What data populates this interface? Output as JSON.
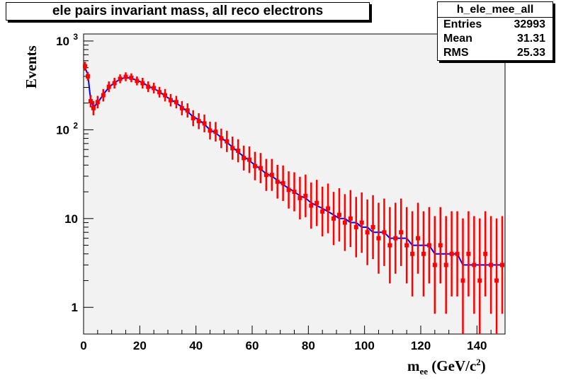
{
  "chart_data": {
    "type": "scatter",
    "title": "ele pairs invariant mass, all reco electrons",
    "xlabel": "m_ee (GeV/c^2)",
    "xlabel_main": "m",
    "xlabel_sub": "ee",
    "xlabel_unit": "(GeV/c",
    "xlabel_sup": "2",
    "xlabel_close": ")",
    "ylabel": "Events",
    "xlim": [
      0,
      150
    ],
    "ylim": [
      0.5,
      1200
    ],
    "yscale": "log",
    "x_ticks": [
      "0",
      "20",
      "40",
      "60",
      "80",
      "100",
      "120",
      "140"
    ],
    "y_ticks": [
      "1",
      "10",
      "10",
      "10"
    ],
    "y_tick_exps": [
      "",
      "",
      "2",
      "3"
    ],
    "grid": false,
    "series": [
      {
        "color": "#0000ff",
        "x": [
          0.5,
          1.5,
          2.5,
          3.5,
          5,
          7,
          9,
          11,
          13,
          15,
          17,
          19,
          21,
          23,
          25,
          27,
          29,
          31,
          33,
          35,
          37,
          39,
          41,
          43,
          45,
          47,
          49,
          51,
          53,
          55,
          57,
          59,
          61,
          63,
          65,
          67,
          69,
          71,
          73,
          75,
          77,
          79,
          81,
          83,
          85,
          87,
          89,
          91,
          93,
          95,
          97,
          99,
          101,
          103,
          105,
          107,
          109,
          111,
          113,
          115,
          117,
          119,
          121,
          123,
          125,
          127,
          129,
          131,
          133,
          135,
          137,
          139,
          141,
          143,
          145,
          147,
          149
        ],
        "y": [
          500,
          420,
          220,
          180,
          200,
          250,
          300,
          340,
          370,
          390,
          380,
          360,
          340,
          310,
          290,
          270,
          240,
          220,
          200,
          180,
          160,
          140,
          130,
          115,
          100,
          92,
          82,
          72,
          64,
          56,
          50,
          45,
          40,
          36,
          32,
          30,
          27,
          24,
          22,
          20,
          18,
          17,
          15,
          14,
          13,
          12,
          11,
          10,
          10,
          9,
          9,
          8,
          8,
          7,
          7,
          7,
          6,
          6,
          6,
          6,
          5,
          5,
          5,
          5,
          4,
          4,
          4,
          4,
          4,
          3,
          3,
          3,
          3,
          3,
          3,
          3,
          3
        ]
      },
      {
        "color": "#ff0000",
        "x": [
          0.5,
          1.5,
          2.5,
          3.5,
          5,
          7,
          9,
          11,
          13,
          15,
          17,
          19,
          21,
          23,
          25,
          27,
          29,
          31,
          33,
          35,
          37,
          39,
          41,
          43,
          45,
          47,
          49,
          51,
          53,
          55,
          57,
          59,
          61,
          63,
          65,
          67,
          69,
          71,
          73,
          75,
          77,
          79,
          81,
          83,
          85,
          87,
          89,
          91,
          93,
          95,
          97,
          99,
          101,
          103,
          105,
          107,
          109,
          111,
          113,
          115,
          117,
          119,
          121,
          123,
          125,
          127,
          129,
          131,
          133,
          135,
          137,
          139,
          141,
          143,
          145,
          147,
          149
        ],
        "y": [
          520,
          400,
          210,
          175,
          205,
          245,
          305,
          335,
          375,
          395,
          385,
          355,
          335,
          305,
          295,
          265,
          245,
          215,
          205,
          175,
          165,
          135,
          125,
          118,
          98,
          95,
          80,
          74,
          62,
          58,
          48,
          46,
          39,
          37,
          31,
          31,
          26,
          25,
          21,
          20,
          17,
          18,
          14,
          15,
          12,
          13,
          10,
          11,
          9,
          10,
          8,
          9,
          7,
          8,
          6,
          7,
          5,
          6,
          7,
          5,
          4,
          6,
          4,
          5,
          3,
          5,
          3,
          4,
          4,
          2,
          4,
          3,
          2,
          4,
          3,
          2,
          3
        ],
        "err": [
          0.05,
          0.05,
          0.07,
          0.08,
          0.07,
          0.07,
          0.06,
          0.06,
          0.05,
          0.05,
          0.05,
          0.05,
          0.06,
          0.06,
          0.06,
          0.06,
          0.07,
          0.07,
          0.07,
          0.08,
          0.08,
          0.09,
          0.09,
          0.1,
          0.1,
          0.11,
          0.11,
          0.12,
          0.13,
          0.13,
          0.14,
          0.15,
          0.16,
          0.17,
          0.18,
          0.18,
          0.19,
          0.2,
          0.21,
          0.22,
          0.24,
          0.24,
          0.26,
          0.26,
          0.28,
          0.28,
          0.3,
          0.3,
          0.32,
          0.32,
          0.34,
          0.34,
          0.37,
          0.36,
          0.4,
          0.38,
          0.43,
          0.4,
          0.38,
          0.43,
          0.48,
          0.4,
          0.48,
          0.43,
          0.55,
          0.43,
          0.55,
          0.48,
          0.48,
          0.7,
          0.48,
          0.55,
          0.7,
          0.48,
          0.55,
          0.7,
          0.55
        ]
      }
    ]
  },
  "stats": {
    "name": "h_ele_mee_all",
    "rows": [
      {
        "label": "Entries",
        "value": "32993"
      },
      {
        "label": "Mean",
        "value": "31.31"
      },
      {
        "label": "RMS",
        "value": "25.33"
      }
    ]
  }
}
